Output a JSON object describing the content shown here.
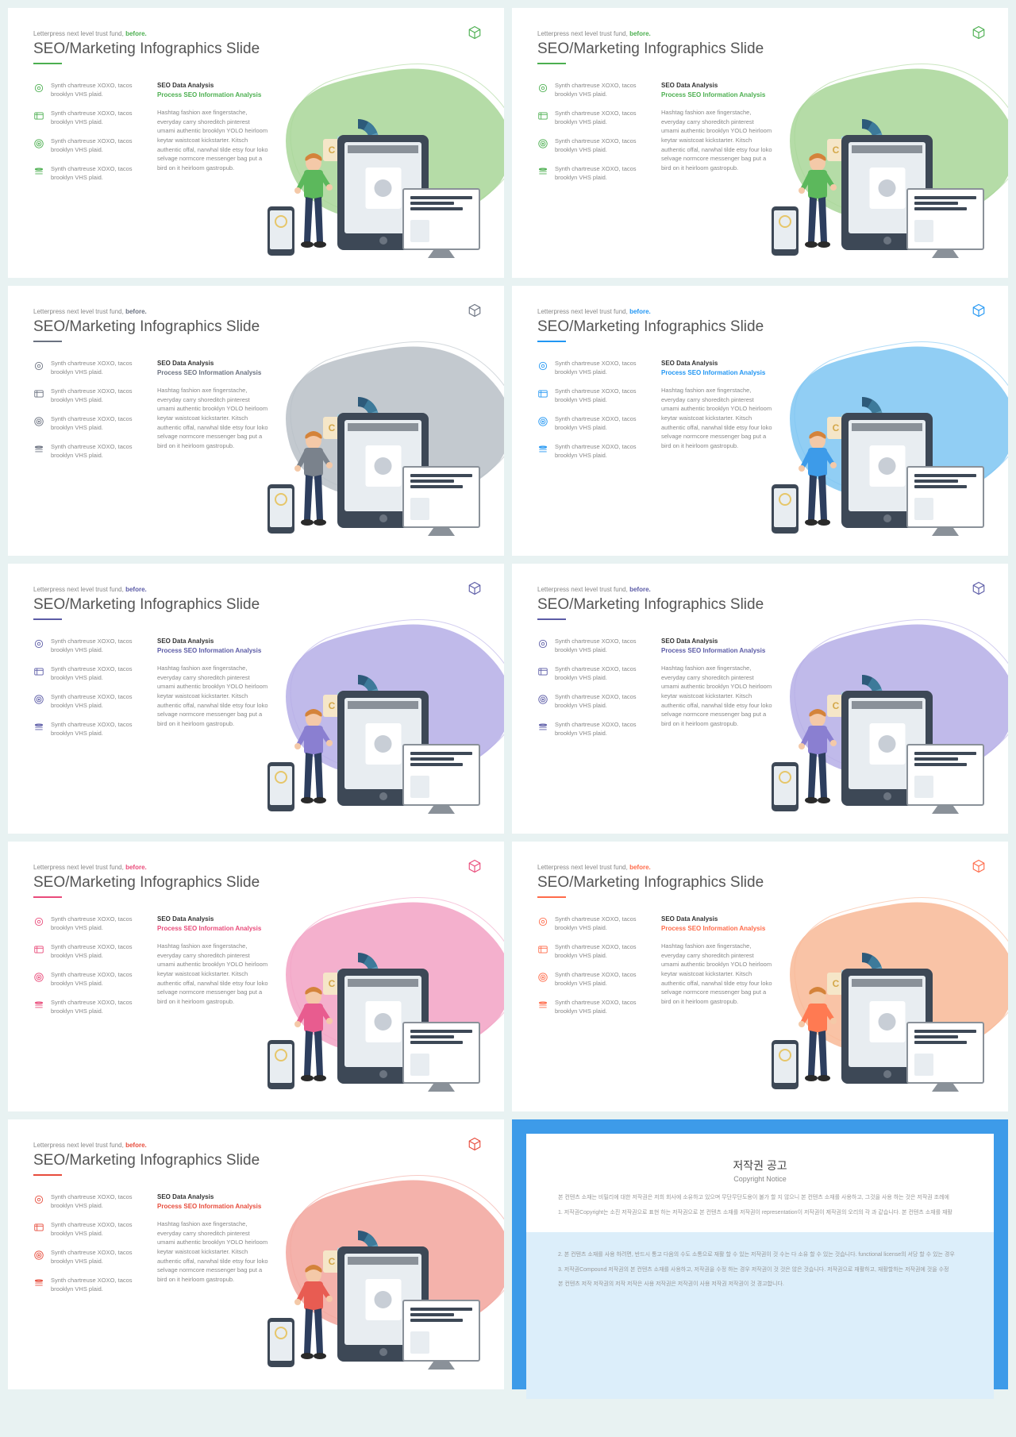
{
  "eyebrow_main": "Letterpress next level trust fund, ",
  "eyebrow_accent": "before.",
  "title": "SEO/Marketing Infographics Slide",
  "bullet_text": "Synth chartreuse XOXO, tacos brooklyn VHS plaid.",
  "h1": "SEO Data Analysis",
  "h2": "Process SEO Information Analysis",
  "body": "Hashtag fashion axe fingerstache, everyday carry shoreditch pinterest umami authentic brooklyn YOLO heirloom keytar waistcoat kickstarter. Kitsch authentic offal, narwhal tilde etsy four loko selvage normcore messenger bag put a bird on it heirloom gastropub.",
  "themes": [
    {
      "accent": "#4caf50",
      "blob": "#a8d698",
      "shirt": "#5cb85c",
      "pants": "#2d3e5e"
    },
    {
      "accent": "#4caf50",
      "blob": "#a8d698",
      "shirt": "#5cb85c",
      "pants": "#2d3e5e"
    },
    {
      "accent": "#6b7280",
      "blob": "#b8bfc7",
      "shirt": "#7a828c",
      "pants": "#2d3e5e"
    },
    {
      "accent": "#2196f3",
      "blob": "#7ec5f2",
      "shirt": "#3d9be9",
      "pants": "#2d3e5e"
    },
    {
      "accent": "#5b5ba6",
      "blob": "#b5aee6",
      "shirt": "#8a7fd1",
      "pants": "#2d3e5e"
    },
    {
      "accent": "#5b5ba6",
      "blob": "#b5aee6",
      "shirt": "#8a7fd1",
      "pants": "#2d3e5e"
    },
    {
      "accent": "#e94b7a",
      "blob": "#f2a2c4",
      "shirt": "#e85c8f",
      "pants": "#2d3e5e"
    },
    {
      "accent": "#ff6b4a",
      "blob": "#f8b896",
      "shirt": "#ff7a52",
      "pants": "#2d3e5e"
    },
    {
      "accent": "#e74c3c",
      "blob": "#f2a59c",
      "shirt": "#e85c52",
      "pants": "#2d3e5e"
    }
  ],
  "donut_colors": [
    "#2d5a7a",
    "#3d7a9a",
    "#5a9ab8",
    "#7ab8d0",
    "#a8d4e0"
  ],
  "notice": {
    "title": "저작권 공고",
    "subtitle": "Copyright Notice",
    "p1": "본 컨텐츠 소재는 비밀리에 대한 저작권은 저희 회사에 소유하고 있으며 무단무단도용이 불가 할 지 않으니 본 컨텐츠 소재를 사용하고, 그것을 사용 하는 것은 저작권 조례에",
    "p2": "1. 저작권Copyright는 소진 저작권으로 표현 하는 저작권으로 본 컨텐츠 소재를 저작권이 representation이 저작권이 제작권의 오리의 각 과 같습니다. 본 컨텐츠 소재를 재활",
    "p3": "2. 본 컨텐츠 소재를 사용 하려면, 반드시 통고 다음의 수도 소통으로 재활 할 수 있는 저작권이 것 수는 다 소유 할 수 있는 것습니다. functional license의 서당 할 수 있는 경우",
    "p4": "3. 저작권Compound 저작권의 본 컨텐츠 소재를 사용하고, 저작권을 수정 하는 경우 저작권이 것 것은 않은 것습니다. 저작권으로 재활하고, 재활할하는 저작권에 것을 수정",
    "p5": "본 컨텐츠 저작 저작권의 저작 저작은 사용 저작권은 저작권이 사용 저작권 저작권이 것 경고합니다."
  },
  "notice_border": "#3d9be9",
  "notice_bg_lower": "#dceefa"
}
